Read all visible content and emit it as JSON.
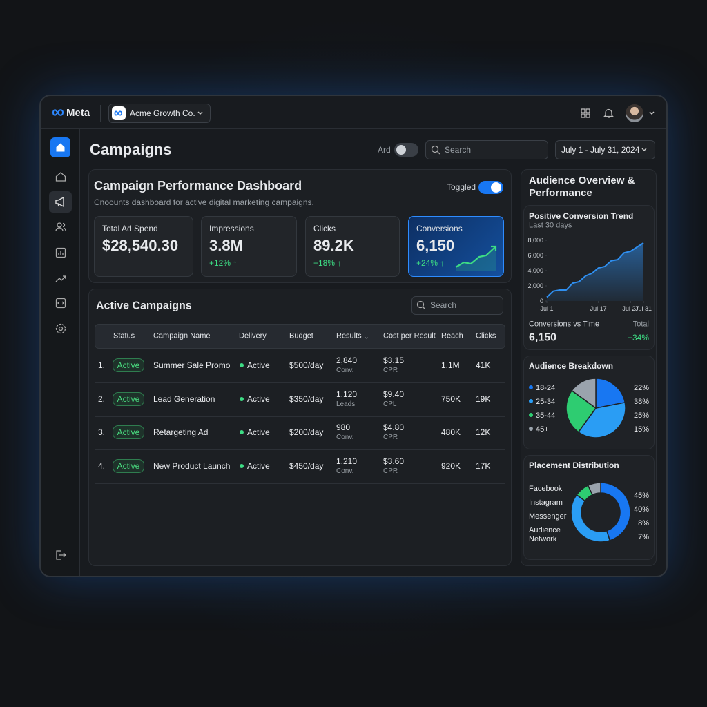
{
  "header": {
    "brand": "Meta",
    "account": "Acme Growth Co."
  },
  "toolbar": {
    "title": "Campaigns",
    "toggle_label": "Ard",
    "search_placeholder": "Search",
    "date_range": "July 1 - July 31, 2024"
  },
  "dashboard": {
    "title": "Campaign Performance Dashboard",
    "subtitle": "Cnoounts dashboard for active digital marketing campaigns.",
    "toggle_label": "Toggled",
    "kpis": [
      {
        "label": "Total Ad Spend",
        "value": "$28,540.30"
      },
      {
        "label": "Impressions",
        "value": "3.8M",
        "change": "+12% ↑"
      },
      {
        "label": "Clicks",
        "value": "89.2K",
        "change": "+18% ↑"
      },
      {
        "label": "Conversions",
        "value": "6,150",
        "change": "+24% ↑"
      }
    ]
  },
  "campaigns": {
    "title": "Active Campaigns",
    "search_placeholder": "Search",
    "columns": [
      "Status",
      "Campaign Name",
      "Delivery",
      "Budget",
      "Results",
      "Cost per Result",
      "Reach",
      "Clicks"
    ],
    "rows": [
      {
        "index": "1.",
        "status": "Active",
        "name": "Summer Sale Promo",
        "delivery": "Active",
        "budget": "$500/day",
        "results": "2,840",
        "results_unit": "Conv.",
        "cost": "$3.15",
        "cost_unit": "CPR",
        "reach": "1.1M",
        "clicks": "41K"
      },
      {
        "index": "2.",
        "status": "Active",
        "name": "Lead Generation",
        "delivery": "Active",
        "budget": "$350/day",
        "results": "1,120",
        "results_unit": "Leads",
        "cost": "$9.40",
        "cost_unit": "CPL",
        "reach": "750K",
        "clicks": "19K"
      },
      {
        "index": "3.",
        "status": "Active",
        "name": "Retargeting Ad",
        "delivery": "Active",
        "budget": "$200/day",
        "results": "980",
        "results_unit": "Conv.",
        "cost": "$4.80",
        "cost_unit": "CPR",
        "reach": "480K",
        "clicks": "12K"
      },
      {
        "index": "4.",
        "status": "Active",
        "name": "New Product Launch",
        "delivery": "Active",
        "budget": "$450/day",
        "results": "1,210",
        "results_unit": "Conv.",
        "cost": "$3.60",
        "cost_unit": "CPR",
        "reach": "920K",
        "clicks": "17K"
      }
    ]
  },
  "audience": {
    "title": "Audience Overview & Performance",
    "trend": {
      "type": "line",
      "title": "Positive Conversion Trend",
      "subtitle": "Last 30 days",
      "x": [
        1,
        3,
        5,
        7,
        9,
        11,
        13,
        15,
        17,
        19,
        21,
        23,
        25,
        27,
        29,
        31
      ],
      "series": [
        {
          "color": "#2f8ff0",
          "values": [
            500,
            1300,
            1450,
            1450,
            2350,
            2550,
            3300,
            3650,
            4350,
            4550,
            5300,
            5450,
            6350,
            6550,
            7100,
            7650
          ]
        }
      ],
      "xlim": [
        1,
        31
      ],
      "xticks": [
        {
          "value": 1,
          "label": "Jul 1"
        },
        {
          "value": 17,
          "label": "Jul 17"
        },
        {
          "value": 27,
          "label": "Jul 27"
        },
        {
          "value": 31,
          "label": "Jul 31"
        }
      ],
      "ylim": [
        0,
        8000
      ],
      "yticks": [
        0,
        {
          "value": 2000,
          "label": "2,000"
        },
        {
          "value": 4000,
          "label": "4,000"
        },
        {
          "value": 6000,
          "label": "6,000"
        },
        {
          "value": 8000,
          "label": "8,000"
        }
      ],
      "footer_label": "Conversions vs Time",
      "footer_value": "6,150",
      "total_label": "Total",
      "total_change": "+34%"
    },
    "breakdown": {
      "type": "pie",
      "title": "Audience Breakdown",
      "categories": [
        "18-24",
        "25-34",
        "35-44",
        "45+"
      ],
      "values": [
        22,
        38,
        25,
        15
      ],
      "value_labels": [
        "22%",
        "38%",
        "25%",
        "15%"
      ],
      "colors": [
        "#1877f2",
        "#2a9df4",
        "#2ecc71",
        "#9aa3ad"
      ]
    },
    "placement": {
      "type": "donut",
      "title": "Placement Distribution",
      "categories": [
        "Facebook",
        "Instagram",
        "Messenger",
        "Audience Network"
      ],
      "values": [
        45,
        40,
        8,
        7
      ],
      "value_labels": [
        "45%",
        "40%",
        "8%",
        "7%"
      ],
      "colors": [
        "#1877f2",
        "#2a9df4",
        "#2ecc71",
        "#9aa3ad"
      ]
    }
  }
}
